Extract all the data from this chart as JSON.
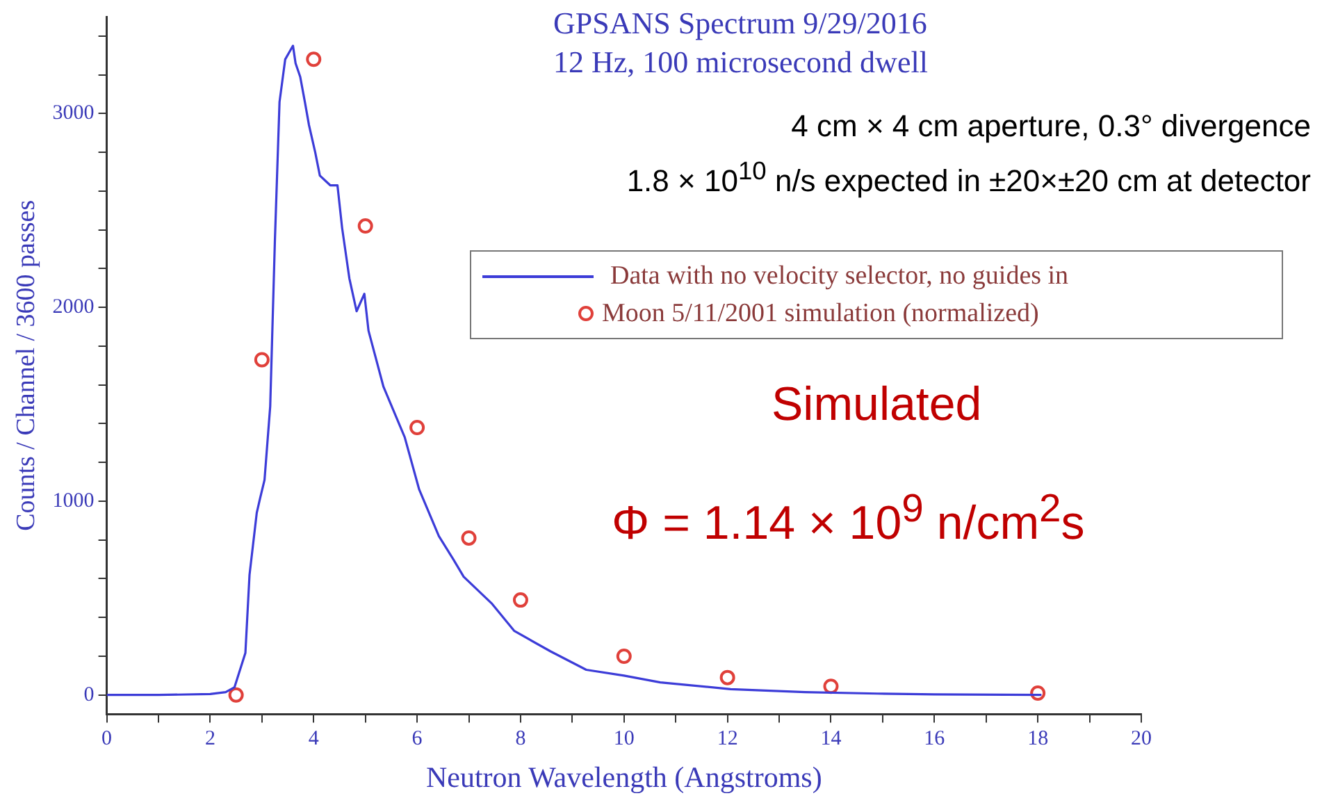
{
  "chart_data": {
    "type": "line",
    "title": "GPSANS Spectrum 9/29/2016",
    "subtitle": "12 Hz, 100 microsecond dwell",
    "xlabel": "Neutron Wavelength (Angstroms)",
    "ylabel": "Counts / Channel / 3600 passes",
    "annotations": [
      "4 cm × 4 cm aperture, 0.3° divergence",
      "1.8 × 10$^{10}$ n/s expected in ±20×±20 cm at detector",
      "Simulated",
      "Φ = 1.14 × 10$^{9}$ n/cm$^{2}$s"
    ],
    "xlim": [
      0,
      20
    ],
    "xticks": [
      0,
      {
        "value": 1,
        "label": null
      },
      2,
      {
        "value": 3,
        "label": null
      },
      4,
      {
        "value": 5,
        "label": null
      },
      6,
      {
        "value": 7,
        "label": null
      },
      8,
      {
        "value": 9,
        "label": null
      },
      10,
      {
        "value": 11,
        "label": null
      },
      12,
      {
        "value": 13,
        "label": null
      },
      14,
      {
        "value": 15,
        "label": null
      },
      16,
      {
        "value": 17,
        "label": null
      },
      18,
      {
        "value": 19,
        "label": null
      },
      20
    ],
    "ylim": [
      -100,
      3500
    ],
    "yticks": [
      0,
      {
        "value": 200,
        "label": null
      },
      {
        "value": 400,
        "label": null
      },
      {
        "value": 600,
        "label": null
      },
      {
        "value": 800,
        "label": null
      },
      1000,
      {
        "value": 1200,
        "label": null
      },
      {
        "value": 1400,
        "label": null
      },
      {
        "value": 1600,
        "label": null
      },
      {
        "value": 1800,
        "label": null
      },
      2000,
      {
        "value": 2200,
        "label": null
      },
      {
        "value": 2400,
        "label": null
      },
      {
        "value": 2600,
        "label": null
      },
      {
        "value": 2800,
        "label": null
      },
      3000,
      {
        "value": 3200,
        "label": null
      },
      {
        "value": 3400,
        "label": null
      }
    ],
    "grid": false,
    "legend": "top right",
    "series": [
      {
        "name": "Data with no velocity selector, no guides in",
        "color": "#3c3cd8",
        "marker": "none",
        "x": [
          0,
          1,
          2,
          2.3,
          2.47,
          2.68,
          2.76,
          2.9,
          2.96,
          3.05,
          3.16,
          3.25,
          3.34,
          3.45,
          3.6,
          3.65,
          3.74,
          3.83,
          3.91,
          4.03,
          4.12,
          4.32,
          4.46,
          4.55,
          4.69,
          4.83,
          4.98,
          5.06,
          5.35,
          5.76,
          6.04,
          6.42,
          6.7,
          6.9,
          7.45,
          7.88,
          8.58,
          9.27,
          10,
          10.7,
          12.06,
          13.5,
          14.9,
          16,
          18.07
        ],
        "values": [
          0,
          0,
          5,
          15,
          40,
          217,
          620,
          940,
          1010,
          1110,
          1490,
          2340,
          3060,
          3280,
          3350,
          3260,
          3190,
          3060,
          2940,
          2800,
          2680,
          2630,
          2630,
          2410,
          2150,
          1980,
          2070,
          1880,
          1590,
          1330,
          1060,
          820,
          700,
          610,
          470,
          330,
          225,
          130,
          100,
          65,
          30,
          15,
          7,
          3,
          0
        ]
      },
      {
        "name": "Moon  5/11/2001 simulation (normalized)",
        "type": "scatter",
        "color": "#e0403a",
        "marker": "circle",
        "x": [
          2.5,
          3,
          4,
          5,
          6,
          7,
          8,
          10,
          12,
          14,
          18
        ],
        "values": [
          0,
          1730,
          3280,
          2420,
          1380,
          810,
          490,
          200,
          90,
          45,
          10
        ]
      }
    ]
  }
}
